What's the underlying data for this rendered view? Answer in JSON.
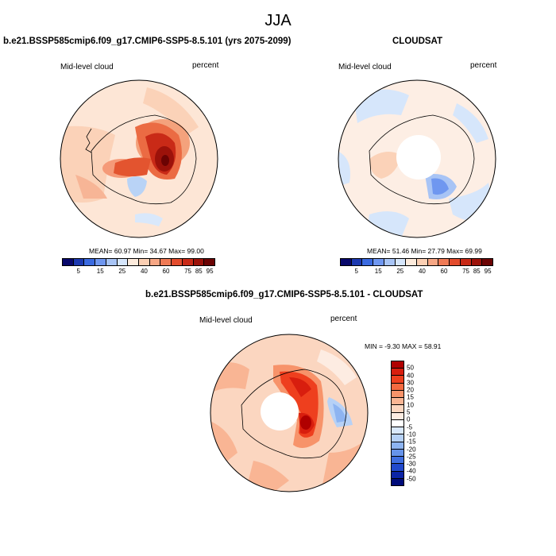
{
  "title": "JJA",
  "panels": [
    {
      "title": "b.e21.BSSP585cmip6.f09_g17.CMIP6-SSP5-8.5.101 (yrs 2075-2099)",
      "left_label": "Mid-level cloud",
      "right_label": "percent",
      "stats": "MEAN= 60.97  Min= 34.67  Max= 99.00"
    },
    {
      "title": "CLOUDSAT",
      "left_label": "Mid-level cloud",
      "right_label": "percent",
      "stats": "MEAN= 51.46  Min= 27.79  Max= 69.99"
    },
    {
      "title": "b.e21.BSSP585cmip6.f09_g17.CMIP6-SSP5-8.5.101 - CLOUDSAT",
      "left_label": "Mid-level cloud",
      "right_label": "percent",
      "stats": "MIN = -9.30 MAX = 58.91"
    }
  ],
  "abs_colorbar": {
    "colors": [
      "#08086b",
      "#1c39b0",
      "#3a6ae0",
      "#6f97f0",
      "#a8c4f5",
      "#d6e6fb",
      "#fdebdc",
      "#fbcfb3",
      "#f7a785",
      "#ef7a55",
      "#e34c2d",
      "#c92a17",
      "#9c120a",
      "#6b0303"
    ],
    "labels": [
      "5",
      "15",
      "25",
      "40",
      "60",
      "75",
      "85",
      "95"
    ]
  },
  "diff_colorbar": {
    "colors": [
      "#b00000",
      "#d81e0e",
      "#ee3f1e",
      "#f46a40",
      "#f7936a",
      "#f9b594",
      "#fbd6c0",
      "#fdece2",
      "#ffffff",
      "#d9e8fb",
      "#b6d1f6",
      "#8db4f1",
      "#6693ea",
      "#3f6ee0",
      "#2149cc",
      "#0c24a5",
      "#000b7a"
    ],
    "labels": [
      "50",
      "40",
      "30",
      "20",
      "15",
      "10",
      "5",
      "0",
      "-5",
      "-10",
      "-15",
      "-20",
      "-25",
      "-30",
      "-40",
      "-50"
    ]
  }
}
